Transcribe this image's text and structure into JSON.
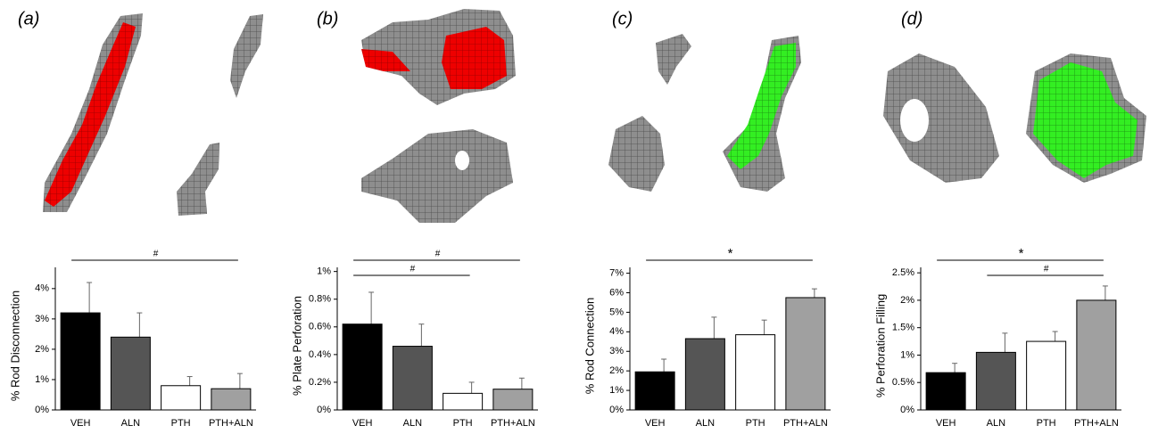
{
  "chart_data": [
    {
      "type": "bar",
      "panel_label": "(a)",
      "y_label": "% Rod Disconnection",
      "categories": [
        "VEH",
        "ALN",
        "PTH",
        "PTH+ALN"
      ],
      "series": [
        {
          "colors": [
            "#000000",
            "#555555",
            "#ffffff",
            "#a0a0a0"
          ],
          "values": [
            3.2,
            2.4,
            0.8,
            0.7
          ],
          "errors": [
            1.0,
            0.8,
            0.3,
            0.5
          ]
        }
      ],
      "ylim": [
        0,
        4.7
      ],
      "yticks": [
        {
          "value": 0,
          "label": "0%"
        },
        {
          "value": 1,
          "label": "1%"
        },
        {
          "value": 2,
          "label": "2%"
        },
        {
          "value": 3,
          "label": "3%"
        },
        {
          "value": 4,
          "label": "4%"
        }
      ],
      "annotations": [
        {
          "text": "#",
          "from": 0,
          "to": 3
        }
      ]
    },
    {
      "type": "bar",
      "panel_label": "(b)",
      "y_label": "% Plate Perforation",
      "categories": [
        "VEH",
        "ALN",
        "PTH",
        "PTH+ALN"
      ],
      "series": [
        {
          "colors": [
            "#000000",
            "#555555",
            "#ffffff",
            "#a0a0a0"
          ],
          "values": [
            0.62,
            0.46,
            0.12,
            0.15
          ],
          "errors": [
            0.23,
            0.16,
            0.08,
            0.08
          ]
        }
      ],
      "ylim": [
        0,
        1.03
      ],
      "yticks": [
        {
          "value": 0,
          "label": "0%"
        },
        {
          "value": 0.2,
          "label": "0.2%"
        },
        {
          "value": 0.4,
          "label": "0.4%"
        },
        {
          "value": 0.6,
          "label": "0.6%"
        },
        {
          "value": 0.8,
          "label": "0.8%"
        },
        {
          "value": 1,
          "label": "1%"
        }
      ],
      "annotations": [
        {
          "text": "#",
          "from": 0,
          "to": 3
        },
        {
          "text": "#",
          "from": 0,
          "to": 2
        }
      ]
    },
    {
      "type": "bar",
      "panel_label": "(c)",
      "y_label": "% Rod Connection",
      "categories": [
        "VEH",
        "ALN",
        "PTH",
        "PTH+ALN"
      ],
      "series": [
        {
          "colors": [
            "#000000",
            "#555555",
            "#ffffff",
            "#a0a0a0"
          ],
          "values": [
            1.95,
            3.65,
            3.85,
            5.75
          ],
          "errors": [
            0.65,
            1.1,
            0.75,
            0.45
          ]
        }
      ],
      "ylim": [
        0,
        7.3
      ],
      "yticks": [
        {
          "value": 0,
          "label": "0%"
        },
        {
          "value": 1,
          "label": "1%"
        },
        {
          "value": 2,
          "label": "2%"
        },
        {
          "value": 3,
          "label": "3%"
        },
        {
          "value": 4,
          "label": "4%"
        },
        {
          "value": 5,
          "label": "5%"
        },
        {
          "value": 6,
          "label": "6%"
        },
        {
          "value": 7,
          "label": "7%"
        }
      ],
      "annotations": [
        {
          "text": "*",
          "from": 0,
          "to": 3
        }
      ]
    },
    {
      "type": "bar",
      "panel_label": "(d)",
      "y_label": "% Perforation Filling",
      "categories": [
        "VEH",
        "ALN",
        "PTH",
        "PTH+ALN"
      ],
      "series": [
        {
          "colors": [
            "#000000",
            "#555555",
            "#ffffff",
            "#a0a0a0"
          ],
          "values": [
            0.68,
            1.05,
            1.25,
            2.0
          ],
          "errors": [
            0.17,
            0.35,
            0.18,
            0.26
          ]
        }
      ],
      "ylim": [
        0,
        2.6
      ],
      "yticks": [
        {
          "value": 0,
          "label": "0%"
        },
        {
          "value": 0.5,
          "label": "0.5%"
        },
        {
          "value": 1,
          "label": "1%"
        },
        {
          "value": 1.5,
          "label": "1.5%"
        },
        {
          "value": 2,
          "label": "2%"
        },
        {
          "value": 2.5,
          "label": "2.5%"
        }
      ],
      "annotations": [
        {
          "text": "*",
          "from": 0,
          "to": 3
        },
        {
          "text": "#",
          "from": 1,
          "to": 3
        }
      ]
    }
  ]
}
